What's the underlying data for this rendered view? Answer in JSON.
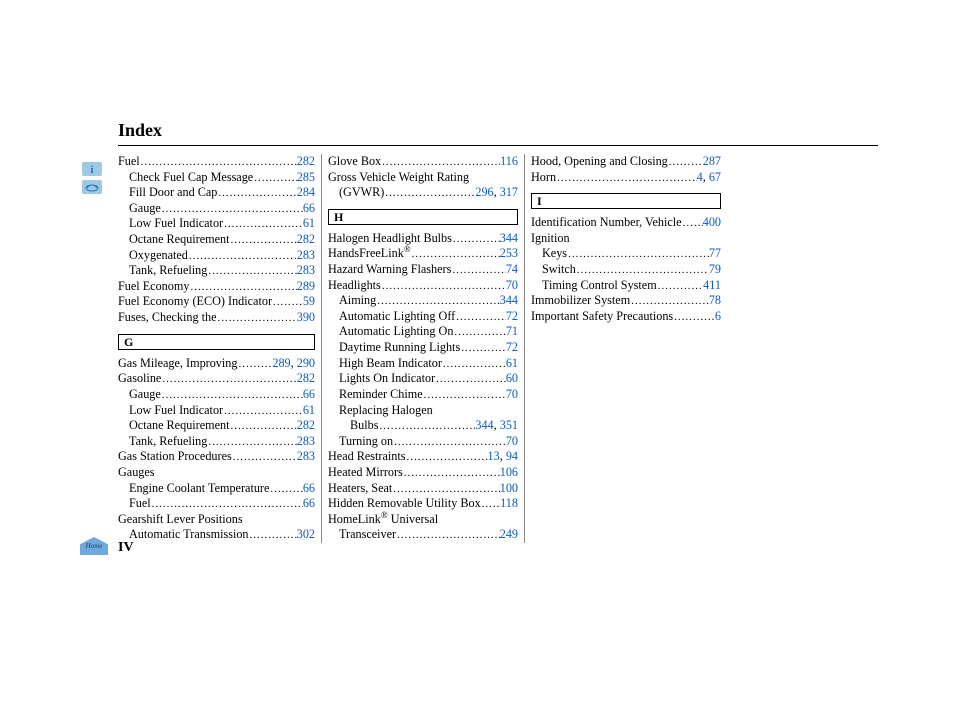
{
  "heading": "Index",
  "pageNumber": "IV",
  "tabs": [
    {
      "name": "info-icon",
      "bg": "#9ecae1",
      "glyph": "i"
    },
    {
      "name": "car-icon",
      "bg": "#9ecae1",
      "glyph": "car"
    }
  ],
  "columns": [
    [
      {
        "t": "e",
        "label": "Fuel",
        "pages": [
          "282"
        ]
      },
      {
        "t": "e",
        "ind": 1,
        "label": "Check Fuel Cap Message",
        "pages": [
          "285"
        ]
      },
      {
        "t": "e",
        "ind": 1,
        "label": "Fill Door and Cap",
        "pages": [
          "284"
        ]
      },
      {
        "t": "e",
        "ind": 1,
        "label": "Gauge",
        "pages": [
          "66"
        ]
      },
      {
        "t": "e",
        "ind": 1,
        "label": "Low Fuel Indicator",
        "pages": [
          "61"
        ]
      },
      {
        "t": "e",
        "ind": 1,
        "label": "Octane Requirement",
        "pages": [
          "282"
        ]
      },
      {
        "t": "e",
        "ind": 1,
        "label": "Oxygenated",
        "pages": [
          "283"
        ]
      },
      {
        "t": "e",
        "ind": 1,
        "label": "Tank, Refueling",
        "pages": [
          "283"
        ]
      },
      {
        "t": "e",
        "label": "Fuel Economy",
        "pages": [
          "289"
        ]
      },
      {
        "t": "e",
        "label": "Fuel Economy (ECO) Indicator",
        "pages": [
          "59"
        ]
      },
      {
        "t": "e",
        "label": "Fuses, Checking the",
        "pages": [
          "390"
        ]
      },
      {
        "t": "h",
        "letter": "G"
      },
      {
        "t": "e",
        "label": "Gas Mileage, Improving",
        "pages": [
          "289",
          "290"
        ]
      },
      {
        "t": "e",
        "label": "Gasoline",
        "pages": [
          "282"
        ]
      },
      {
        "t": "e",
        "ind": 1,
        "label": "Gauge",
        "pages": [
          "66"
        ]
      },
      {
        "t": "e",
        "ind": 1,
        "label": "Low Fuel Indicator",
        "pages": [
          "61"
        ]
      },
      {
        "t": "e",
        "ind": 1,
        "label": "Octane Requirement",
        "pages": [
          "282"
        ]
      },
      {
        "t": "e",
        "ind": 1,
        "label": "Tank, Refueling",
        "pages": [
          "283"
        ]
      },
      {
        "t": "e",
        "label": "Gas Station Procedures",
        "pages": [
          "283"
        ]
      },
      {
        "t": "l",
        "label": "Gauges"
      },
      {
        "t": "e",
        "ind": 1,
        "label": "Engine Coolant Temperature",
        "pages": [
          "66"
        ]
      },
      {
        "t": "e",
        "ind": 1,
        "label": "Fuel",
        "pages": [
          "66"
        ]
      },
      {
        "t": "l",
        "label": "Gearshift Lever Positions"
      },
      {
        "t": "e",
        "ind": 1,
        "label": "Automatic Transmission",
        "pages": [
          "302"
        ]
      }
    ],
    [
      {
        "t": "e",
        "label": "Glove Box",
        "pages": [
          "116"
        ]
      },
      {
        "t": "l",
        "label": "Gross Vehicle Weight Rating"
      },
      {
        "t": "e",
        "ind": 1,
        "label": "(GVWR)",
        "pages": [
          "296",
          "317"
        ]
      },
      {
        "t": "h",
        "letter": "H"
      },
      {
        "t": "e",
        "label": "Halogen Headlight Bulbs",
        "pages": [
          "344"
        ]
      },
      {
        "t": "e",
        "label": "HandsFreeLink",
        "reg": true,
        "pages": [
          "253"
        ]
      },
      {
        "t": "e",
        "label": "Hazard Warning Flashers",
        "pages": [
          "74"
        ]
      },
      {
        "t": "e",
        "label": "Headlights",
        "pages": [
          "70"
        ]
      },
      {
        "t": "e",
        "ind": 1,
        "label": "Aiming",
        "pages": [
          "344"
        ]
      },
      {
        "t": "e",
        "ind": 1,
        "label": "Automatic Lighting Off",
        "pages": [
          "72"
        ]
      },
      {
        "t": "e",
        "ind": 1,
        "label": "Automatic Lighting On",
        "pages": [
          "71"
        ]
      },
      {
        "t": "e",
        "ind": 1,
        "label": "Daytime Running Lights",
        "pages": [
          "72"
        ]
      },
      {
        "t": "e",
        "ind": 1,
        "label": "High Beam Indicator",
        "pages": [
          "61"
        ]
      },
      {
        "t": "e",
        "ind": 1,
        "label": "Lights On Indicator",
        "pages": [
          "60"
        ]
      },
      {
        "t": "e",
        "ind": 1,
        "label": "Reminder Chime",
        "pages": [
          "70"
        ]
      },
      {
        "t": "l",
        "ind": 1,
        "label": "Replacing Halogen"
      },
      {
        "t": "e",
        "ind": 2,
        "label": "Bulbs",
        "pages": [
          "344",
          "351"
        ]
      },
      {
        "t": "e",
        "ind": 1,
        "label": "Turning on",
        "pages": [
          "70"
        ]
      },
      {
        "t": "e",
        "label": "Head Restraints",
        "pages": [
          "13",
          "94"
        ]
      },
      {
        "t": "e",
        "label": "Heated Mirrors",
        "pages": [
          "106"
        ]
      },
      {
        "t": "e",
        "label": "Heaters, Seat",
        "pages": [
          "100"
        ]
      },
      {
        "t": "e",
        "label": "Hidden Removable Utility Box",
        "pages": [
          "118"
        ]
      },
      {
        "t": "l",
        "label": "HomeLink",
        "reg": true,
        "tail": " Universal"
      },
      {
        "t": "e",
        "ind": 1,
        "label": "Transceiver",
        "pages": [
          "249"
        ]
      }
    ],
    [
      {
        "t": "e",
        "label": "Hood, Opening and Closing",
        "pages": [
          "287"
        ]
      },
      {
        "t": "e",
        "label": "Horn",
        "pages": [
          "4",
          "67"
        ]
      },
      {
        "t": "h",
        "letter": "I"
      },
      {
        "t": "e",
        "label": "Identification Number, Vehicle",
        "pages": [
          "400"
        ]
      },
      {
        "t": "l",
        "label": "Ignition"
      },
      {
        "t": "e",
        "ind": 1,
        "label": "Keys",
        "pages": [
          "77"
        ]
      },
      {
        "t": "e",
        "ind": 1,
        "label": "Switch",
        "pages": [
          "79"
        ]
      },
      {
        "t": "e",
        "ind": 1,
        "label": "Timing Control System",
        "pages": [
          "411"
        ]
      },
      {
        "t": "e",
        "label": "Immobilizer System",
        "pages": [
          "78"
        ]
      },
      {
        "t": "e",
        "label": "Important Safety Precautions",
        "pages": [
          "6"
        ]
      }
    ]
  ]
}
